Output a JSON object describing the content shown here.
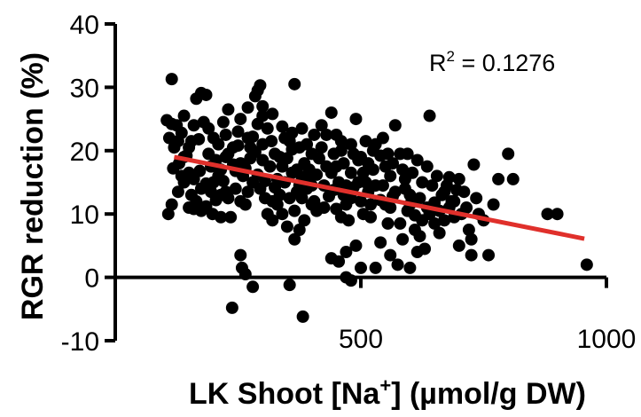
{
  "chart_data": {
    "type": "scatter",
    "xlabel_main": "LK Shoot [Na",
    "xlabel_sup": "+",
    "xlabel_tail": "] (µmol/g DW)",
    "ylabel": "RGR reduction (%)",
    "annotation_main": "R",
    "annotation_sup": "2",
    "annotation_tail": " = 0.1276",
    "xlim": [
      0,
      1000
    ],
    "ylim": [
      -10,
      40
    ],
    "x_ticks": [
      500,
      1000
    ],
    "y_ticks": [
      -10,
      0,
      10,
      20,
      30,
      40
    ],
    "grid": false,
    "colors": {
      "points": "#000000",
      "fit_line": "#e0302b"
    },
    "fit_line": {
      "x": [
        120,
        955
      ],
      "y": [
        19.0,
        6.1
      ]
    },
    "points": [
      [
        115,
        31.3
      ],
      [
        105,
        24.8
      ],
      [
        115,
        24.2
      ],
      [
        125,
        24.0
      ],
      [
        110,
        22.0
      ],
      [
        120,
        20.5
      ],
      [
        135,
        22.8
      ],
      [
        140,
        25.5
      ],
      [
        118,
        17.2
      ],
      [
        130,
        18.0
      ],
      [
        145,
        19.2
      ],
      [
        155,
        21.5
      ],
      [
        160,
        24.0
      ],
      [
        165,
        28.2
      ],
      [
        175,
        29.1
      ],
      [
        185,
        28.8
      ],
      [
        180,
        24.5
      ],
      [
        190,
        23.5
      ],
      [
        200,
        22.0
      ],
      [
        170,
        21.8
      ],
      [
        150,
        16.5
      ],
      [
        140,
        15.0
      ],
      [
        160,
        15.5
      ],
      [
        128,
        13.5
      ],
      [
        115,
        11.5
      ],
      [
        108,
        10.0
      ],
      [
        150,
        11.0
      ],
      [
        160,
        10.8
      ],
      [
        175,
        10.5
      ],
      [
        185,
        11.2
      ],
      [
        198,
        10.0
      ],
      [
        205,
        18.5
      ],
      [
        210,
        21.0
      ],
      [
        220,
        24.5
      ],
      [
        230,
        26.5
      ],
      [
        225,
        19.0
      ],
      [
        215,
        17.0
      ],
      [
        240,
        20.5
      ],
      [
        250,
        23.0
      ],
      [
        255,
        18.0
      ],
      [
        260,
        16.0
      ],
      [
        245,
        14.0
      ],
      [
        230,
        12.5
      ],
      [
        220,
        15.2
      ],
      [
        235,
        9.5
      ],
      [
        255,
        12.0
      ],
      [
        265,
        11.5
      ],
      [
        270,
        13.5
      ],
      [
        275,
        20.5
      ],
      [
        280,
        22.2
      ],
      [
        285,
        28.6
      ],
      [
        290,
        29.5
      ],
      [
        295,
        30.3
      ],
      [
        300,
        27.0
      ],
      [
        310,
        23.5
      ],
      [
        318,
        21.5
      ],
      [
        325,
        19.5
      ],
      [
        300,
        18.5
      ],
      [
        290,
        16.2
      ],
      [
        280,
        15.0
      ],
      [
        295,
        14.0
      ],
      [
        305,
        12.5
      ],
      [
        310,
        10.0
      ],
      [
        320,
        9.0
      ],
      [
        330,
        15.5
      ],
      [
        340,
        17.5
      ],
      [
        345,
        22.0
      ],
      [
        355,
        21.5
      ],
      [
        365,
        30.5
      ],
      [
        360,
        16.5
      ],
      [
        370,
        13.5
      ],
      [
        380,
        12.5
      ],
      [
        385,
        18.0
      ],
      [
        375,
        20.5
      ],
      [
        390,
        21.0
      ],
      [
        395,
        15.5
      ],
      [
        400,
        14.5
      ],
      [
        405,
        12.0
      ],
      [
        410,
        10.5
      ],
      [
        385,
        9.0
      ],
      [
        375,
        7.5
      ],
      [
        365,
        6.0
      ],
      [
        350,
        8.0
      ],
      [
        340,
        10.0
      ],
      [
        330,
        11.5
      ],
      [
        420,
        24.0
      ],
      [
        430,
        22.5
      ],
      [
        440,
        26.0
      ],
      [
        445,
        19.5
      ],
      [
        450,
        17.5
      ],
      [
        455,
        15.0
      ],
      [
        460,
        21.5
      ],
      [
        465,
        13.0
      ],
      [
        470,
        11.5
      ],
      [
        475,
        9.0
      ],
      [
        480,
        16.5
      ],
      [
        485,
        14.2
      ],
      [
        490,
        25.0
      ],
      [
        495,
        18.5
      ],
      [
        500,
        12.0
      ],
      [
        505,
        10.0
      ],
      [
        510,
        15.0
      ],
      [
        515,
        13.5
      ],
      [
        520,
        9.5
      ],
      [
        525,
        17.0
      ],
      [
        530,
        21.0
      ],
      [
        540,
        19.2
      ],
      [
        545,
        14.5
      ],
      [
        550,
        11.5
      ],
      [
        555,
        8.5
      ],
      [
        560,
        16.0
      ],
      [
        565,
        12.8
      ],
      [
        570,
        24.0
      ],
      [
        580,
        19.5
      ],
      [
        590,
        15.5
      ],
      [
        595,
        10.5
      ],
      [
        600,
        13.0
      ],
      [
        610,
        7.5
      ],
      [
        620,
        6.5
      ],
      [
        625,
        9.0
      ],
      [
        635,
        11.0
      ],
      [
        640,
        25.5
      ],
      [
        650,
        11.8
      ],
      [
        660,
        10.5
      ],
      [
        670,
        13.5
      ],
      [
        680,
        15.8
      ],
      [
        690,
        12.0
      ],
      [
        700,
        15.5
      ],
      [
        705,
        10.0
      ],
      [
        720,
        7.5
      ],
      [
        730,
        17.8
      ],
      [
        725,
        6.0
      ],
      [
        760,
        3.5
      ],
      [
        780,
        15.5
      ],
      [
        800,
        19.5
      ],
      [
        810,
        15.5
      ],
      [
        880,
        10.0
      ],
      [
        900,
        10.0
      ],
      [
        960,
        2.0
      ],
      [
        440,
        3.0
      ],
      [
        455,
        2.5
      ],
      [
        470,
        0.0
      ],
      [
        480,
        -0.5
      ],
      [
        530,
        1.5
      ],
      [
        560,
        3.5
      ],
      [
        575,
        2.0
      ],
      [
        585,
        6.0
      ],
      [
        600,
        1.5
      ],
      [
        615,
        4.0
      ],
      [
        630,
        4.5
      ],
      [
        700,
        5.0
      ],
      [
        725,
        3.5
      ],
      [
        255,
        3.5
      ],
      [
        258,
        1.5
      ],
      [
        265,
        0.5
      ],
      [
        280,
        -1.5
      ],
      [
        355,
        -1.2
      ],
      [
        382,
        -6.2
      ],
      [
        238,
        -4.8
      ],
      [
        470,
        4.0
      ],
      [
        490,
        5.0
      ],
      [
        500,
        1.5
      ],
      [
        540,
        5.5
      ],
      [
        165,
        12.0
      ],
      [
        172,
        16.8
      ],
      [
        195,
        17.5
      ],
      [
        210,
        16.0
      ],
      [
        225,
        13.5
      ],
      [
        245,
        16.8
      ],
      [
        265,
        17.2
      ],
      [
        275,
        18.8
      ],
      [
        300,
        21.0
      ],
      [
        315,
        17.5
      ],
      [
        325,
        14.2
      ],
      [
        335,
        13.0
      ],
      [
        345,
        15.0
      ],
      [
        350,
        18.8
      ],
      [
        360,
        20.2
      ],
      [
        370,
        17.0
      ],
      [
        380,
        15.8
      ],
      [
        390,
        14.0
      ],
      [
        400,
        11.5
      ],
      [
        410,
        16.2
      ],
      [
        415,
        18.8
      ],
      [
        425,
        14.5
      ],
      [
        435,
        12.8
      ],
      [
        440,
        16.5
      ],
      [
        450,
        10.8
      ],
      [
        460,
        9.5
      ],
      [
        465,
        18.0
      ],
      [
        470,
        14.5
      ],
      [
        480,
        12.5
      ],
      [
        485,
        19.5
      ],
      [
        495,
        15.0
      ],
      [
        505,
        16.5
      ],
      [
        515,
        18.0
      ],
      [
        520,
        11.5
      ],
      [
        530,
        14.5
      ],
      [
        540,
        12.2
      ],
      [
        550,
        17.5
      ],
      [
        560,
        11.0
      ],
      [
        570,
        13.5
      ],
      [
        580,
        8.5
      ],
      [
        590,
        14.0
      ],
      [
        600,
        11.5
      ],
      [
        610,
        9.8
      ],
      [
        620,
        12.5
      ],
      [
        640,
        10.0
      ],
      [
        650,
        8.5
      ],
      [
        660,
        7.0
      ],
      [
        670,
        9.0
      ],
      [
        680,
        11.0
      ],
      [
        690,
        9.5
      ],
      [
        710,
        13.5
      ],
      [
        740,
        10.0
      ],
      [
        300,
        25.5
      ],
      [
        320,
        25.8
      ],
      [
        340,
        23.8
      ],
      [
        360,
        22.8
      ],
      [
        380,
        23.5
      ],
      [
        400,
        19.5
      ],
      [
        420,
        20.5
      ],
      [
        430,
        17.5
      ],
      [
        450,
        22.5
      ],
      [
        460,
        20.0
      ],
      [
        480,
        21.0
      ],
      [
        500,
        19.0
      ],
      [
        510,
        21.5
      ],
      [
        525,
        20.0
      ],
      [
        545,
        22.0
      ],
      [
        555,
        19.5
      ],
      [
        565,
        18.0
      ],
      [
        585,
        17.0
      ],
      [
        595,
        19.5
      ],
      [
        605,
        16.5
      ],
      [
        615,
        18.5
      ],
      [
        625,
        15.0
      ],
      [
        635,
        17.5
      ],
      [
        645,
        14.5
      ],
      [
        655,
        16.0
      ],
      [
        665,
        13.0
      ],
      [
        675,
        14.5
      ],
      [
        685,
        12.0
      ],
      [
        695,
        13.8
      ],
      [
        715,
        11.0
      ],
      [
        735,
        12.5
      ],
      [
        750,
        9.0
      ],
      [
        770,
        11.5
      ],
      [
        200,
        15.0
      ],
      [
        215,
        13.0
      ],
      [
        230,
        19.5
      ],
      [
        250,
        20.8
      ],
      [
        270,
        22.0
      ],
      [
        285,
        19.8
      ],
      [
        305,
        15.2
      ],
      [
        320,
        12.0
      ],
      [
        335,
        19.0
      ],
      [
        355,
        12.5
      ],
      [
        365,
        10.5
      ],
      [
        375,
        14.5
      ],
      [
        395,
        17.0
      ],
      [
        405,
        22.5
      ],
      [
        425,
        11.0
      ],
      [
        445,
        13.8
      ],
      [
        150,
        20.5
      ],
      [
        140,
        19.0
      ],
      [
        128,
        21.5
      ],
      [
        135,
        16.0
      ],
      [
        155,
        13.0
      ],
      [
        175,
        14.0
      ],
      [
        190,
        19.5
      ],
      [
        185,
        14.8
      ],
      [
        195,
        13.5
      ],
      [
        205,
        12.2
      ],
      [
        215,
        9.5
      ],
      [
        225,
        22.5
      ],
      [
        240,
        17.8
      ],
      [
        255,
        25.0
      ],
      [
        270,
        26.8
      ],
      [
        290,
        24.2
      ]
    ]
  }
}
